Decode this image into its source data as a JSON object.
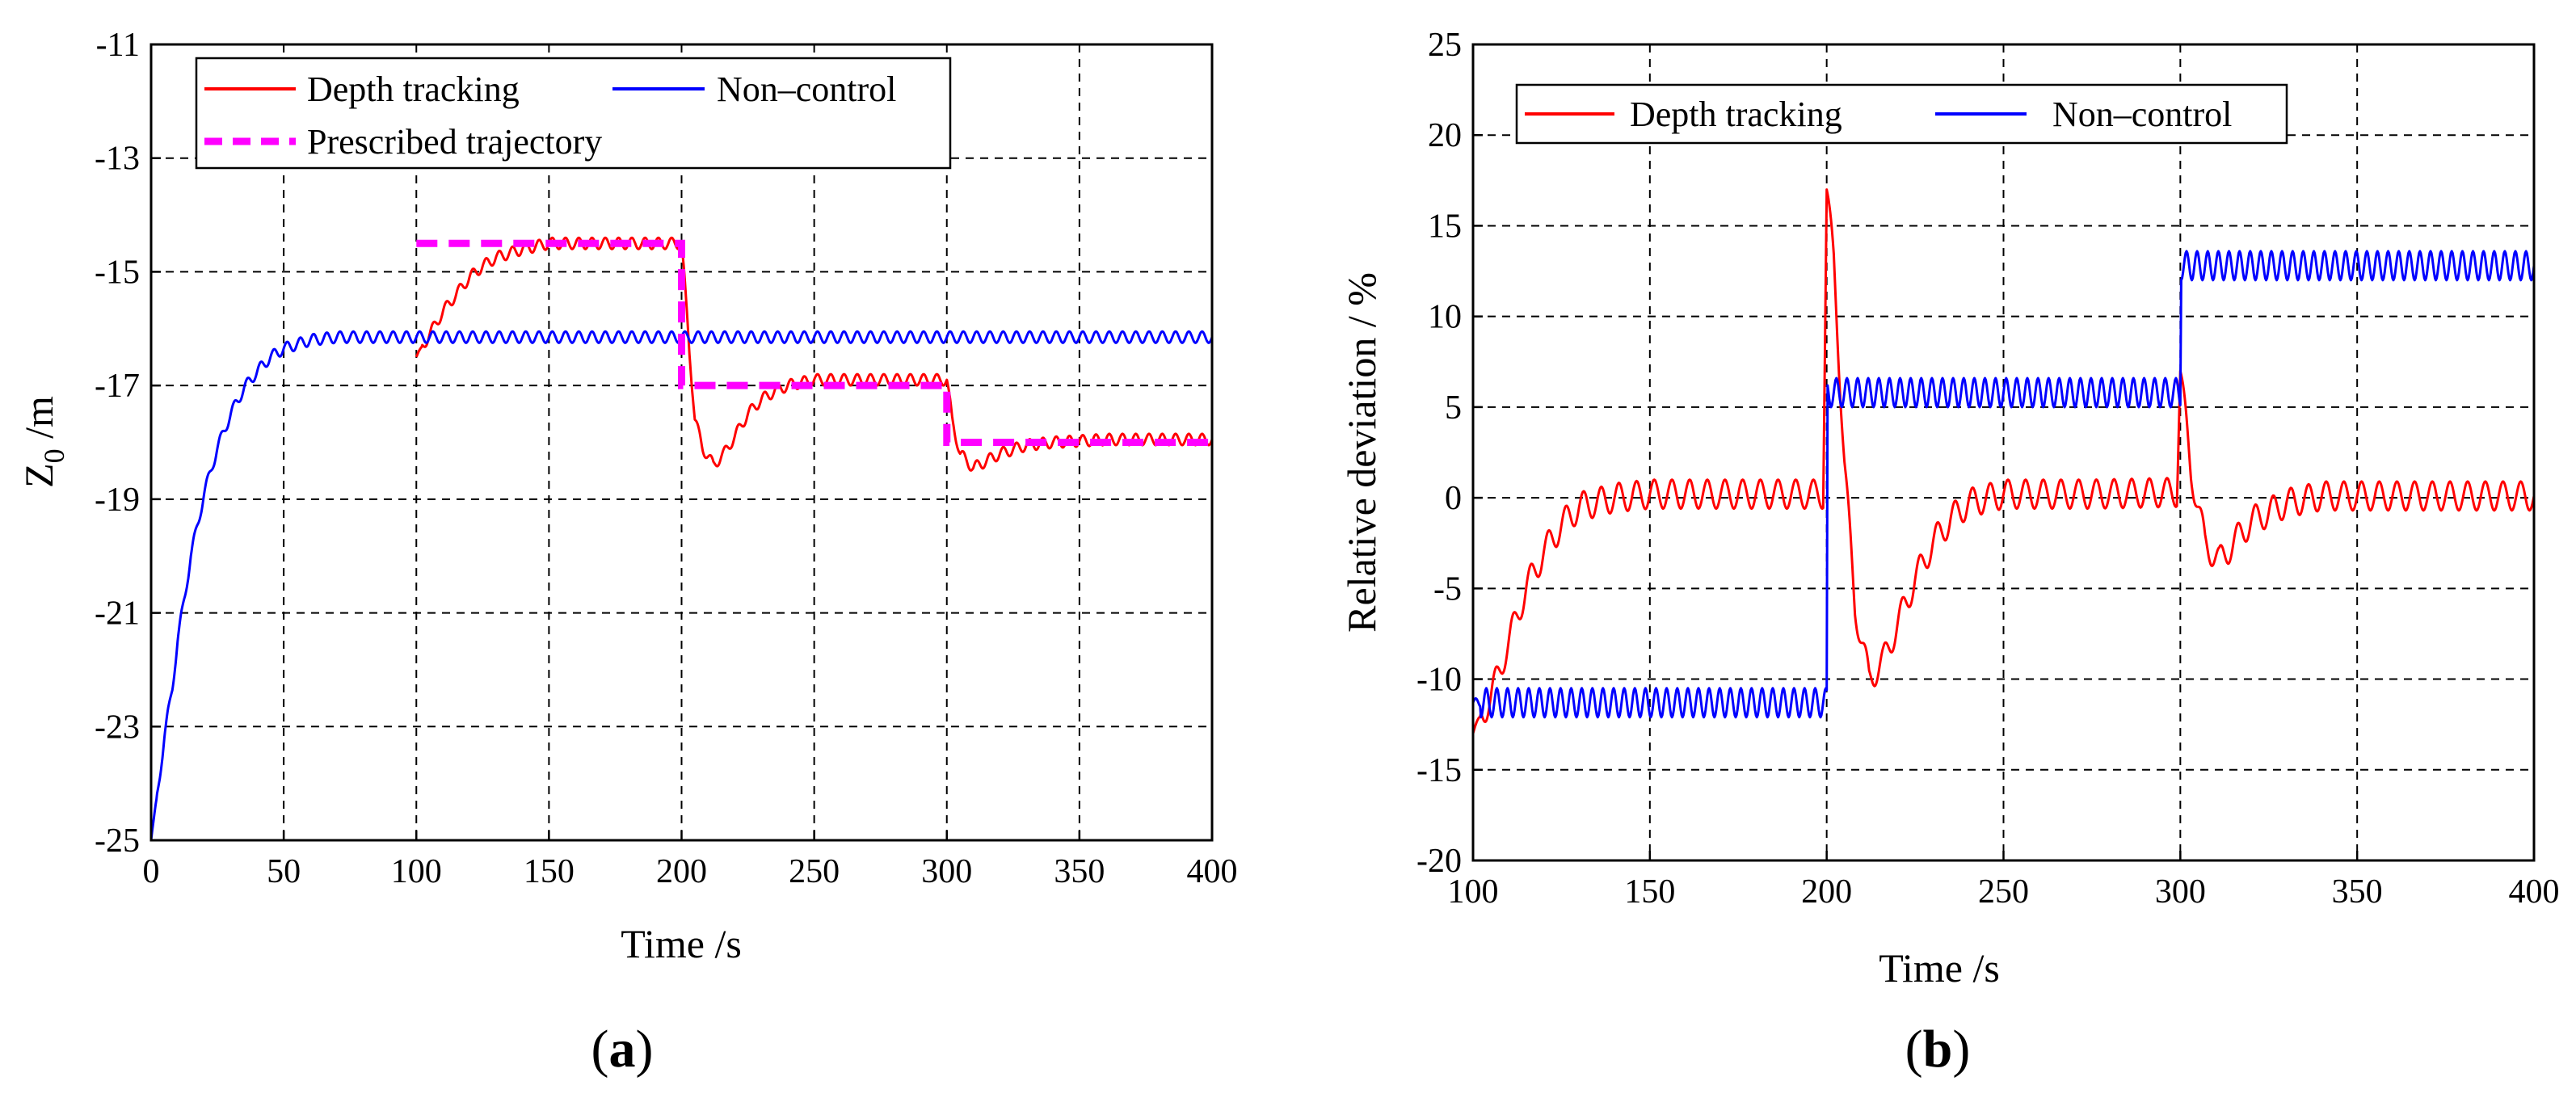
{
  "chart_data": [
    {
      "panel": "a",
      "type": "line",
      "caption": "(a)",
      "xlabel": "Time /s",
      "ylabel_main": "Z",
      "ylabel_sub": "0",
      "ylabel_tail": " /m",
      "xlim": [
        0,
        400
      ],
      "ylim": [
        -25,
        -11
      ],
      "xticks": [
        0,
        50,
        100,
        150,
        200,
        250,
        300,
        350,
        400
      ],
      "yticks": [
        -25,
        -23,
        -21,
        -19,
        -17,
        -15,
        -13,
        -11
      ],
      "grid": true,
      "legend_position": "top-left",
      "legend": [
        "Depth tracking",
        "Non–control",
        "Prescribed trajectory"
      ],
      "colors": {
        "depth": "#ff0000",
        "noncontrol": "#0000ff",
        "prescribed": "#ff00ff"
      },
      "series": [
        {
          "name": "Depth tracking",
          "key": "depth",
          "points": [
            [
              100,
              -16.5
            ],
            [
              105,
              -16.1
            ],
            [
              110,
              -15.7
            ],
            [
              115,
              -15.4
            ],
            [
              120,
              -15.1
            ],
            [
              125,
              -14.9
            ],
            [
              130,
              -14.75
            ],
            [
              140,
              -14.6
            ],
            [
              150,
              -14.5
            ],
            [
              175,
              -14.5
            ],
            [
              200,
              -14.5
            ],
            [
              201,
              -15.1
            ],
            [
              203,
              -16.4
            ],
            [
              205,
              -17.6
            ],
            [
              208,
              -18.1
            ],
            [
              212,
              -18.4
            ],
            [
              216,
              -18.2
            ],
            [
              220,
              -17.9
            ],
            [
              225,
              -17.5
            ],
            [
              230,
              -17.25
            ],
            [
              235,
              -17.1
            ],
            [
              240,
              -17.0
            ],
            [
              250,
              -16.9
            ],
            [
              275,
              -16.9
            ],
            [
              298,
              -16.9
            ],
            [
              300,
              -16.9
            ],
            [
              302,
              -17.6
            ],
            [
              305,
              -18.2
            ],
            [
              310,
              -18.45
            ],
            [
              314,
              -18.35
            ],
            [
              320,
              -18.2
            ],
            [
              330,
              -18.05
            ],
            [
              340,
              -18.0
            ],
            [
              360,
              -17.95
            ],
            [
              400,
              -17.95
            ]
          ],
          "oscillation_amplitude": 0.1,
          "oscillation_period": 5
        },
        {
          "name": "Non–control",
          "key": "noncontrol",
          "points": [
            [
              0,
              -25.0
            ],
            [
              2,
              -24.3
            ],
            [
              5,
              -23.2
            ],
            [
              8,
              -22.3
            ],
            [
              10,
              -21.5
            ],
            [
              15,
              -20.0
            ],
            [
              20,
              -18.9
            ],
            [
              25,
              -18.1
            ],
            [
              30,
              -17.5
            ],
            [
              35,
              -17.05
            ],
            [
              40,
              -16.75
            ],
            [
              45,
              -16.5
            ],
            [
              50,
              -16.35
            ],
            [
              60,
              -16.2
            ],
            [
              70,
              -16.15
            ],
            [
              80,
              -16.15
            ],
            [
              100,
              -16.15
            ],
            [
              400,
              -16.15
            ]
          ],
          "oscillation_amplitude": 0.1,
          "oscillation_period": 5
        },
        {
          "name": "Prescribed trajectory",
          "key": "prescribed",
          "dashed": true,
          "points": [
            [
              100,
              -14.5
            ],
            [
              200,
              -14.5
            ],
            [
              200,
              -17.0
            ],
            [
              300,
              -17.0
            ],
            [
              300,
              -18.0
            ],
            [
              400,
              -18.0
            ]
          ]
        }
      ]
    },
    {
      "panel": "b",
      "type": "line",
      "caption": "(b)",
      "xlabel": "Time /s",
      "ylabel": "Relative deviation / %",
      "xlim": [
        100,
        400
      ],
      "ylim": [
        -20,
        25
      ],
      "xticks": [
        100,
        150,
        200,
        250,
        300,
        350,
        400
      ],
      "yticks": [
        -20,
        -15,
        -10,
        -5,
        0,
        5,
        10,
        15,
        20,
        25
      ],
      "grid": true,
      "legend_position": "top-left",
      "legend": [
        "Depth tracking",
        "Non–control"
      ],
      "colors": {
        "depth": "#ff0000",
        "noncontrol": "#0000ff"
      },
      "series": [
        {
          "name": "Depth tracking",
          "key": "depth",
          "points": [
            [
              100,
              -13
            ],
            [
              105,
              -11
            ],
            [
              110,
              -8
            ],
            [
              115,
              -5
            ],
            [
              120,
              -3
            ],
            [
              125,
              -1.5
            ],
            [
              130,
              -0.5
            ],
            [
              140,
              0
            ],
            [
              150,
              0.2
            ],
            [
              175,
              0.2
            ],
            [
              199,
              0.2
            ],
            [
              200,
              17
            ],
            [
              202,
              13
            ],
            [
              205,
              2
            ],
            [
              208,
              -6
            ],
            [
              212,
              -10
            ],
            [
              216,
              -9
            ],
            [
              220,
              -7
            ],
            [
              225,
              -4.5
            ],
            [
              230,
              -2.5
            ],
            [
              235,
              -1.2
            ],
            [
              240,
              -0.3
            ],
            [
              250,
              0.2
            ],
            [
              275,
              0.2
            ],
            [
              299,
              0.3
            ],
            [
              300,
              7
            ],
            [
              303,
              1.5
            ],
            [
              307,
              -2.5
            ],
            [
              311,
              -3.5
            ],
            [
              315,
              -2.5
            ],
            [
              320,
              -1.3
            ],
            [
              330,
              -0.3
            ],
            [
              340,
              0.1
            ],
            [
              400,
              0.1
            ]
          ],
          "oscillation_amplitude": 0.8,
          "oscillation_period": 5
        },
        {
          "name": "Non–control",
          "key": "noncontrol",
          "points": [
            [
              100,
              -11.3
            ],
            [
              199.9,
              -11.3
            ],
            [
              200,
              -11.3
            ],
            [
              200.1,
              5.8
            ],
            [
              299.9,
              5.8
            ],
            [
              300,
              5.8
            ],
            [
              300.1,
              12.8
            ],
            [
              400,
              12.8
            ]
          ],
          "oscillation_amplitude": 0.8,
          "oscillation_period": 3
        }
      ]
    }
  ]
}
